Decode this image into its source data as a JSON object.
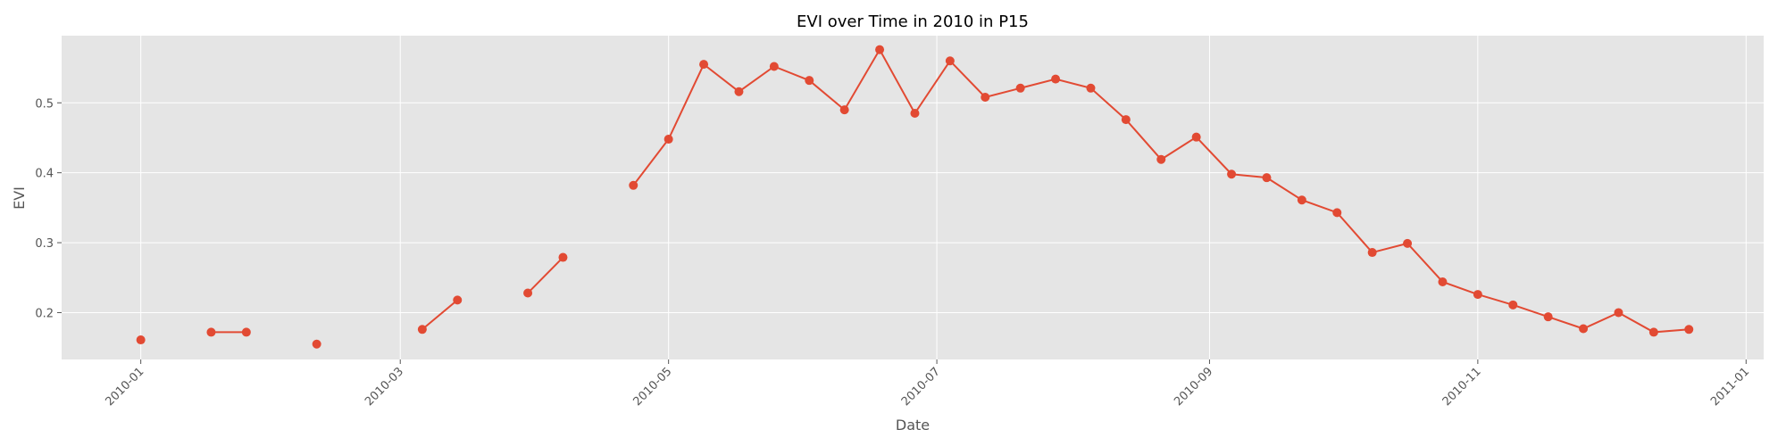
{
  "chart_data": {
    "type": "line",
    "title": "EVI over Time in 2010 in P15",
    "x_label": "Date",
    "y_label": "EVI",
    "x": [
      "2010-01-01",
      "2010-01-09",
      "2010-01-17",
      "2010-01-25",
      "2010-02-02",
      "2010-02-10",
      "2010-02-18",
      "2010-02-26",
      "2010-03-06",
      "2010-03-14",
      "2010-03-22",
      "2010-03-30",
      "2010-04-07",
      "2010-04-15",
      "2010-04-23",
      "2010-05-01",
      "2010-05-09",
      "2010-05-17",
      "2010-05-25",
      "2010-06-02",
      "2010-06-10",
      "2010-06-18",
      "2010-06-26",
      "2010-07-04",
      "2010-07-12",
      "2010-07-20",
      "2010-07-28",
      "2010-08-05",
      "2010-08-13",
      "2010-08-21",
      "2010-08-29",
      "2010-09-06",
      "2010-09-14",
      "2010-09-22",
      "2010-09-30",
      "2010-10-08",
      "2010-10-16",
      "2010-10-24",
      "2010-11-01",
      "2010-11-09",
      "2010-11-17",
      "2010-11-25",
      "2010-12-03",
      "2010-12-11",
      "2010-12-19"
    ],
    "values": [
      0.161,
      null,
      0.172,
      0.172,
      null,
      0.155,
      null,
      null,
      0.176,
      0.218,
      null,
      0.228,
      0.279,
      null,
      0.382,
      0.448,
      0.555,
      0.516,
      0.552,
      0.532,
      0.49,
      0.576,
      0.485,
      0.56,
      0.508,
      0.521,
      0.534,
      0.521,
      0.476,
      0.419,
      0.451,
      0.398,
      0.393,
      0.361,
      0.343,
      0.286,
      0.299,
      0.244,
      0.226,
      0.211,
      0.194,
      0.177,
      0.2,
      0.172,
      0.176
    ],
    "color": "#e24a33",
    "xlim": [
      "2009-12-14",
      "2011-01-05"
    ],
    "xticks": [
      {
        "value": "2010-01-01",
        "label": "2010-01"
      },
      {
        "value": "2010-03-01",
        "label": "2010-03"
      },
      {
        "value": "2010-05-01",
        "label": "2010-05"
      },
      {
        "value": "2010-07-01",
        "label": "2010-07"
      },
      {
        "value": "2010-09-01",
        "label": "2010-09"
      },
      {
        "value": "2010-11-01",
        "label": "2010-11"
      },
      {
        "value": "2011-01-01",
        "label": "2011-01"
      }
    ],
    "ylim": [
      0.133,
      0.596
    ],
    "yticks": [
      0.2,
      0.3,
      0.4,
      0.5
    ],
    "grid": true
  }
}
